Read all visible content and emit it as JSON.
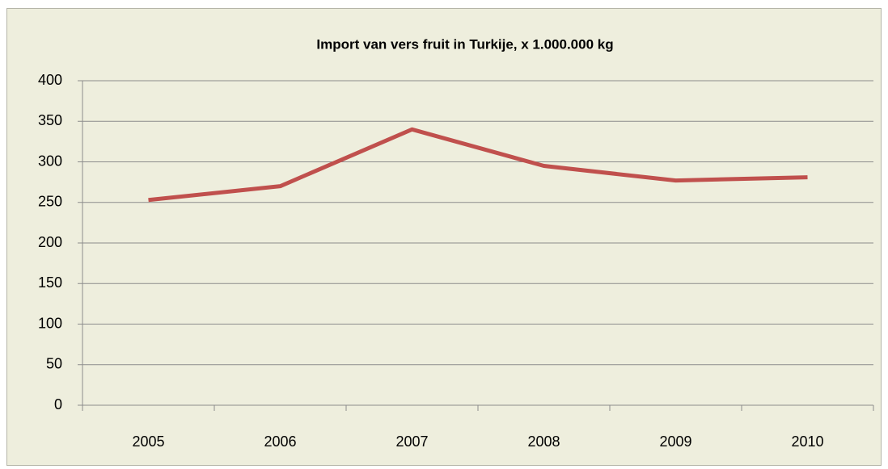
{
  "chart_data": {
    "type": "line",
    "title": "Import van vers fruit in Turkije, x 1.000.000 kg",
    "categories": [
      "2005",
      "2006",
      "2007",
      "2008",
      "2009",
      "2010"
    ],
    "series": [
      {
        "name": "Import",
        "color": "#c0504d",
        "values": [
          253,
          270,
          340,
          295,
          277,
          281
        ]
      }
    ],
    "ylim": [
      0,
      400
    ],
    "yticks": [
      0,
      50,
      100,
      150,
      200,
      250,
      300,
      350,
      400
    ],
    "grid": true
  }
}
